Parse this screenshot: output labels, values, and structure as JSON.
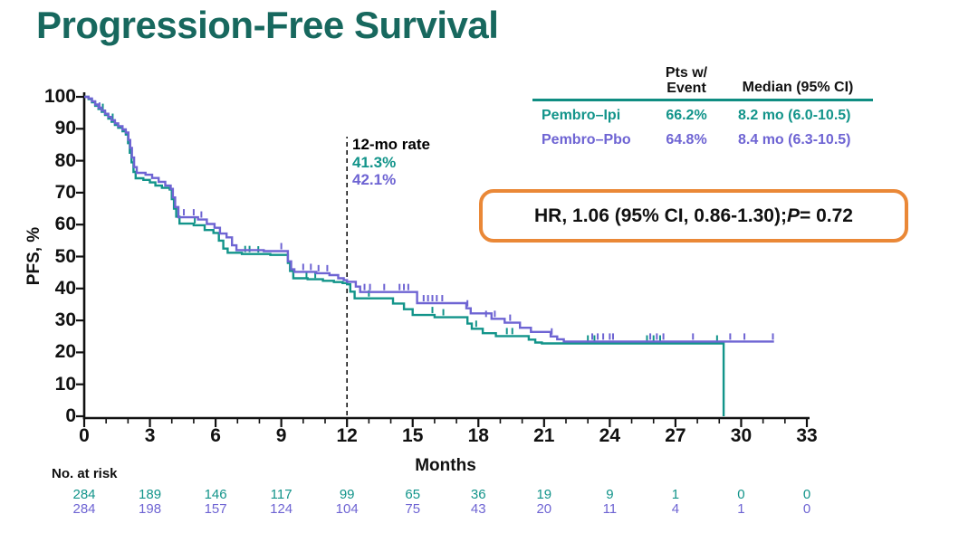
{
  "page": {
    "title": "Progression-Free Survival"
  },
  "colors": {
    "title": "#17685E",
    "pembro_ipi": "#12948A",
    "pembro_pbo": "#6E64D3",
    "table_rule": "#0F8D82",
    "hr_box_border": "#EA8837",
    "axis": "#111111"
  },
  "summary_table": {
    "col1_header_line1": "Pts w/",
    "col1_header_line2": "Event",
    "col2_header": "Median (95% CI)",
    "rows": [
      {
        "name": "Pembro–Ipi",
        "pts_w_event": "66.2%",
        "median": "8.2 mo (6.0-10.5)"
      },
      {
        "name": "Pembro–Pbo",
        "pts_w_event": "64.8%",
        "median": "8.4 mo (6.3-10.5)"
      }
    ]
  },
  "hr_annotation": {
    "prefix": "HR, 1.06 (95% CI, 0.86-1.30); ",
    "p_symbol": "P",
    "p_value": " = 0.72"
  },
  "twelve_mo_annotation": {
    "label": "12-mo rate",
    "pembro_ipi_rate": "41.3%",
    "pembro_pbo_rate": "42.1%"
  },
  "axes": {
    "y_label": "PFS, %",
    "x_label": "Months"
  },
  "no_at_risk": {
    "label": "No. at risk"
  },
  "chart_data": {
    "type": "line",
    "subtype": "kaplan-meier-step",
    "title": "Progression-Free Survival",
    "xlabel": "Months",
    "ylabel": "PFS, %",
    "xlim": [
      0,
      33
    ],
    "ylim": [
      0,
      100
    ],
    "x_ticks": [
      0,
      3,
      6,
      9,
      12,
      15,
      18,
      21,
      24,
      27,
      30,
      33
    ],
    "x_minor_tick_every": 1,
    "y_ticks": [
      0,
      10,
      20,
      30,
      40,
      50,
      60,
      70,
      80,
      90,
      100
    ],
    "grid": false,
    "reference_line": {
      "x": 12,
      "style": "dashed",
      "top_pct": 87.5
    },
    "series": [
      {
        "name": "Pembro–Ipi",
        "color_key": "pembro_ipi",
        "pts_w_event": "66.2%",
        "median_95ci": "8.2 mo (6.0-10.5)",
        "rate_12mo_pct": 41.3,
        "no_at_risk": [
          284,
          189,
          146,
          117,
          99,
          65,
          36,
          19,
          9,
          1,
          0,
          0
        ],
        "steps": [
          [
            0,
            100
          ],
          [
            0.2,
            99.3
          ],
          [
            0.35,
            98.3
          ],
          [
            0.5,
            97.2
          ],
          [
            0.65,
            96.2
          ],
          [
            0.8,
            95.3
          ],
          [
            0.95,
            94.3
          ],
          [
            1.1,
            93.2
          ],
          [
            1.25,
            92.2
          ],
          [
            1.4,
            91.2
          ],
          [
            1.55,
            90.3
          ],
          [
            1.75,
            89.2
          ],
          [
            1.9,
            88.2
          ],
          [
            2.0,
            85.5
          ],
          [
            2.08,
            82.5
          ],
          [
            2.16,
            79.5
          ],
          [
            2.25,
            76.5
          ],
          [
            2.35,
            74.5
          ],
          [
            2.7,
            74
          ],
          [
            3.0,
            73.2
          ],
          [
            3.25,
            72.2
          ],
          [
            3.55,
            71.5
          ],
          [
            3.9,
            71
          ],
          [
            4.0,
            68
          ],
          [
            4.1,
            65
          ],
          [
            4.2,
            62.5
          ],
          [
            4.35,
            60.3
          ],
          [
            5.0,
            59.8
          ],
          [
            5.5,
            58.3
          ],
          [
            5.9,
            57.4
          ],
          [
            6.15,
            55
          ],
          [
            6.35,
            52.5
          ],
          [
            6.55,
            51.2
          ],
          [
            7.2,
            50.8
          ],
          [
            8.5,
            50.5
          ],
          [
            9.3,
            48
          ],
          [
            9.4,
            45.5
          ],
          [
            9.55,
            43.2
          ],
          [
            10.2,
            42.9
          ],
          [
            10.9,
            42.4
          ],
          [
            11.4,
            42
          ],
          [
            11.8,
            41.7
          ],
          [
            12.0,
            41.3
          ],
          [
            12.15,
            39
          ],
          [
            12.35,
            36.9
          ],
          [
            14.1,
            35.3
          ],
          [
            14.6,
            33.5
          ],
          [
            15.0,
            31.7
          ],
          [
            16.0,
            31
          ],
          [
            17.5,
            29
          ],
          [
            17.7,
            27.4
          ],
          [
            18.2,
            26
          ],
          [
            18.8,
            25.1
          ],
          [
            20.3,
            24
          ],
          [
            20.6,
            23.1
          ],
          [
            20.9,
            22.8
          ],
          [
            29.2,
            22.8
          ],
          [
            29.2,
            0
          ]
        ],
        "censor_marks": [
          [
            0.85,
            95.3
          ],
          [
            1.3,
            92.2
          ],
          [
            5.05,
            59.8
          ],
          [
            7.35,
            50.8
          ],
          [
            7.55,
            50.8
          ],
          [
            7.95,
            50.7
          ],
          [
            10.15,
            42.9
          ],
          [
            10.55,
            42.7
          ],
          [
            13.0,
            36.9
          ],
          [
            15.9,
            31.7
          ],
          [
            16.4,
            31
          ],
          [
            17.9,
            27.4
          ],
          [
            19.3,
            25.1
          ],
          [
            19.55,
            25.1
          ],
          [
            23.0,
            22.8
          ],
          [
            23.3,
            22.8
          ],
          [
            25.7,
            22.8
          ],
          [
            26.0,
            22.8
          ],
          [
            26.3,
            22.8
          ],
          [
            28.9,
            22.8
          ]
        ]
      },
      {
        "name": "Pembro–Pbo",
        "color_key": "pembro_pbo",
        "pts_w_event": "64.8%",
        "median_95ci": "8.4 mo (6.3-10.5)",
        "rate_12mo_pct": 42.1,
        "no_at_risk": [
          284,
          198,
          157,
          124,
          104,
          75,
          43,
          20,
          11,
          4,
          1,
          0
        ],
        "steps": [
          [
            0,
            100
          ],
          [
            0.2,
            99.5
          ],
          [
            0.35,
            98.6
          ],
          [
            0.5,
            97.6
          ],
          [
            0.65,
            96.6
          ],
          [
            0.8,
            95.7
          ],
          [
            0.95,
            94.7
          ],
          [
            1.1,
            93.7
          ],
          [
            1.25,
            92.7
          ],
          [
            1.4,
            91.7
          ],
          [
            1.55,
            90.8
          ],
          [
            1.75,
            89.8
          ],
          [
            1.9,
            88.8
          ],
          [
            2.02,
            86.5
          ],
          [
            2.1,
            84
          ],
          [
            2.18,
            81
          ],
          [
            2.28,
            78
          ],
          [
            2.4,
            76.2
          ],
          [
            2.8,
            75.6
          ],
          [
            3.1,
            74.6
          ],
          [
            3.4,
            73.4
          ],
          [
            3.7,
            72.2
          ],
          [
            3.95,
            71.2
          ],
          [
            4.05,
            68.5
          ],
          [
            4.15,
            65.5
          ],
          [
            4.3,
            62.3
          ],
          [
            5.2,
            61.6
          ],
          [
            5.6,
            60.2
          ],
          [
            5.95,
            59
          ],
          [
            6.2,
            57.2
          ],
          [
            6.5,
            56
          ],
          [
            6.75,
            53.5
          ],
          [
            6.95,
            52
          ],
          [
            8.2,
            51.7
          ],
          [
            9.3,
            48.5
          ],
          [
            9.45,
            46
          ],
          [
            9.6,
            45.2
          ],
          [
            10.6,
            44.8
          ],
          [
            11.2,
            44.2
          ],
          [
            11.6,
            43.2
          ],
          [
            11.85,
            42.6
          ],
          [
            12.0,
            42.1
          ],
          [
            12.4,
            40.6
          ],
          [
            12.6,
            38.9
          ],
          [
            15.2,
            35.4
          ],
          [
            17.45,
            33.8
          ],
          [
            17.65,
            32.2
          ],
          [
            18.6,
            30.5
          ],
          [
            19.2,
            29.3
          ],
          [
            19.9,
            27.7
          ],
          [
            20.4,
            26.4
          ],
          [
            21.3,
            25
          ],
          [
            21.6,
            24.1
          ],
          [
            21.9,
            23.4
          ],
          [
            31.5,
            23.4
          ]
        ],
        "censor_marks": [
          [
            0.7,
            95.7
          ],
          [
            4.55,
            62.3
          ],
          [
            5.0,
            62.3
          ],
          [
            5.35,
            61.6
          ],
          [
            9.0,
            51.7
          ],
          [
            10.0,
            45.2
          ],
          [
            10.35,
            45.2
          ],
          [
            10.7,
            44.8
          ],
          [
            11.1,
            44.8
          ],
          [
            12.8,
            38.9
          ],
          [
            13.05,
            38.9
          ],
          [
            13.7,
            38.9
          ],
          [
            14.4,
            38.9
          ],
          [
            14.6,
            38.9
          ],
          [
            14.8,
            38.9
          ],
          [
            15.5,
            35.4
          ],
          [
            15.7,
            35.4
          ],
          [
            15.9,
            35.4
          ],
          [
            16.1,
            35.4
          ],
          [
            16.35,
            35.4
          ],
          [
            17.5,
            33.8
          ],
          [
            18.35,
            30.5
          ],
          [
            18.75,
            30.5
          ],
          [
            19.45,
            29.3
          ],
          [
            21.35,
            25
          ],
          [
            23.2,
            23.4
          ],
          [
            23.45,
            23.4
          ],
          [
            23.7,
            23.4
          ],
          [
            24.0,
            23.4
          ],
          [
            24.15,
            23.4
          ],
          [
            25.85,
            23.4
          ],
          [
            26.15,
            23.4
          ],
          [
            26.45,
            23.4
          ],
          [
            27.8,
            23.4
          ],
          [
            29.5,
            23.4
          ],
          [
            30.15,
            23.4
          ],
          [
            31.45,
            23.4
          ]
        ]
      }
    ]
  }
}
